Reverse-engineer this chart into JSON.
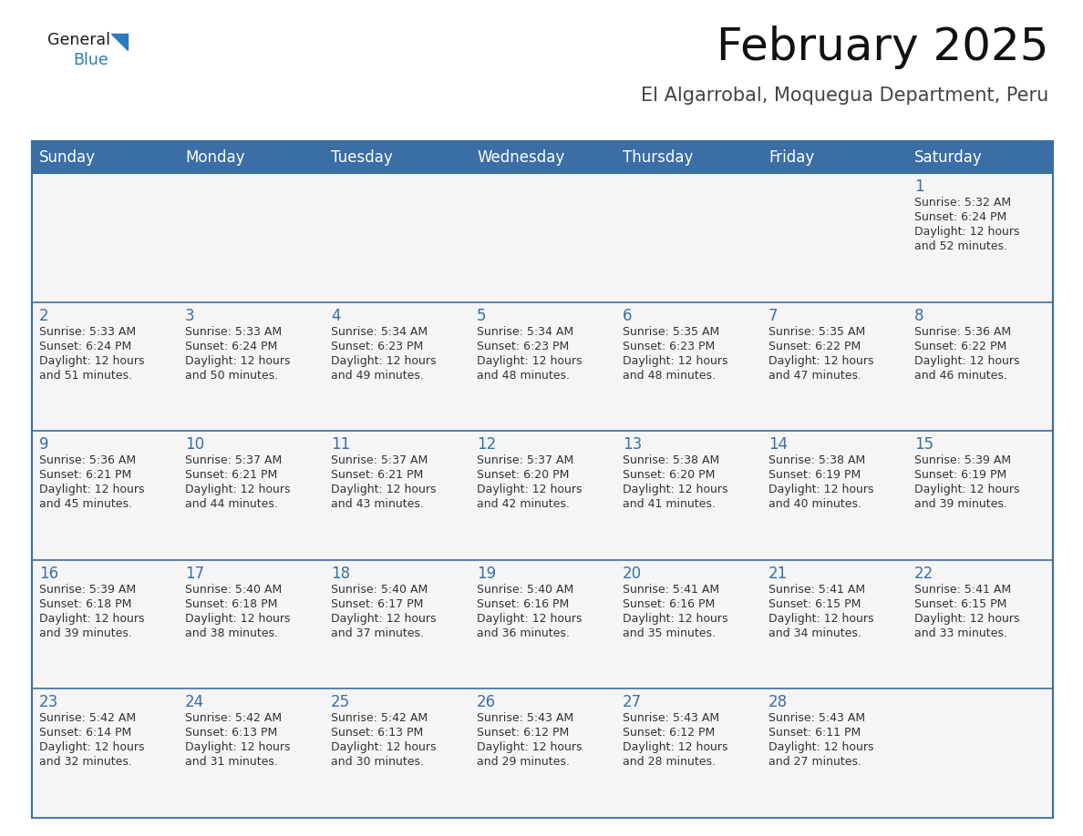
{
  "title": "February 2025",
  "subtitle": "El Algarrobal, Moquegua Department, Peru",
  "header_color": "#3a6ea5",
  "header_text_color": "#ffffff",
  "cell_bg_color": "#ffffff",
  "day_number_color": "#3a6ea5",
  "text_color": "#333333",
  "border_color": "#3a6ea5",
  "days_of_week": [
    "Sunday",
    "Monday",
    "Tuesday",
    "Wednesday",
    "Thursday",
    "Friday",
    "Saturday"
  ],
  "weeks": [
    [
      {
        "day": "",
        "sunrise": "",
        "sunset": "",
        "daylight": ""
      },
      {
        "day": "",
        "sunrise": "",
        "sunset": "",
        "daylight": ""
      },
      {
        "day": "",
        "sunrise": "",
        "sunset": "",
        "daylight": ""
      },
      {
        "day": "",
        "sunrise": "",
        "sunset": "",
        "daylight": ""
      },
      {
        "day": "",
        "sunrise": "",
        "sunset": "",
        "daylight": ""
      },
      {
        "day": "",
        "sunrise": "",
        "sunset": "",
        "daylight": ""
      },
      {
        "day": "1",
        "sunrise": "5:32 AM",
        "sunset": "6:24 PM",
        "daylight": "and 52 minutes."
      }
    ],
    [
      {
        "day": "2",
        "sunrise": "5:33 AM",
        "sunset": "6:24 PM",
        "daylight": "and 51 minutes."
      },
      {
        "day": "3",
        "sunrise": "5:33 AM",
        "sunset": "6:24 PM",
        "daylight": "and 50 minutes."
      },
      {
        "day": "4",
        "sunrise": "5:34 AM",
        "sunset": "6:23 PM",
        "daylight": "and 49 minutes."
      },
      {
        "day": "5",
        "sunrise": "5:34 AM",
        "sunset": "6:23 PM",
        "daylight": "and 48 minutes."
      },
      {
        "day": "6",
        "sunrise": "5:35 AM",
        "sunset": "6:23 PM",
        "daylight": "and 48 minutes."
      },
      {
        "day": "7",
        "sunrise": "5:35 AM",
        "sunset": "6:22 PM",
        "daylight": "and 47 minutes."
      },
      {
        "day": "8",
        "sunrise": "5:36 AM",
        "sunset": "6:22 PM",
        "daylight": "and 46 minutes."
      }
    ],
    [
      {
        "day": "9",
        "sunrise": "5:36 AM",
        "sunset": "6:21 PM",
        "daylight": "and 45 minutes."
      },
      {
        "day": "10",
        "sunrise": "5:37 AM",
        "sunset": "6:21 PM",
        "daylight": "and 44 minutes."
      },
      {
        "day": "11",
        "sunrise": "5:37 AM",
        "sunset": "6:21 PM",
        "daylight": "and 43 minutes."
      },
      {
        "day": "12",
        "sunrise": "5:37 AM",
        "sunset": "6:20 PM",
        "daylight": "and 42 minutes."
      },
      {
        "day": "13",
        "sunrise": "5:38 AM",
        "sunset": "6:20 PM",
        "daylight": "and 41 minutes."
      },
      {
        "day": "14",
        "sunrise": "5:38 AM",
        "sunset": "6:19 PM",
        "daylight": "and 40 minutes."
      },
      {
        "day": "15",
        "sunrise": "5:39 AM",
        "sunset": "6:19 PM",
        "daylight": "and 39 minutes."
      }
    ],
    [
      {
        "day": "16",
        "sunrise": "5:39 AM",
        "sunset": "6:18 PM",
        "daylight": "and 39 minutes."
      },
      {
        "day": "17",
        "sunrise": "5:40 AM",
        "sunset": "6:18 PM",
        "daylight": "and 38 minutes."
      },
      {
        "day": "18",
        "sunrise": "5:40 AM",
        "sunset": "6:17 PM",
        "daylight": "and 37 minutes."
      },
      {
        "day": "19",
        "sunrise": "5:40 AM",
        "sunset": "6:16 PM",
        "daylight": "and 36 minutes."
      },
      {
        "day": "20",
        "sunrise": "5:41 AM",
        "sunset": "6:16 PM",
        "daylight": "and 35 minutes."
      },
      {
        "day": "21",
        "sunrise": "5:41 AM",
        "sunset": "6:15 PM",
        "daylight": "and 34 minutes."
      },
      {
        "day": "22",
        "sunrise": "5:41 AM",
        "sunset": "6:15 PM",
        "daylight": "and 33 minutes."
      }
    ],
    [
      {
        "day": "23",
        "sunrise": "5:42 AM",
        "sunset": "6:14 PM",
        "daylight": "and 32 minutes."
      },
      {
        "day": "24",
        "sunrise": "5:42 AM",
        "sunset": "6:13 PM",
        "daylight": "and 31 minutes."
      },
      {
        "day": "25",
        "sunrise": "5:42 AM",
        "sunset": "6:13 PM",
        "daylight": "and 30 minutes."
      },
      {
        "day": "26",
        "sunrise": "5:43 AM",
        "sunset": "6:12 PM",
        "daylight": "and 29 minutes."
      },
      {
        "day": "27",
        "sunrise": "5:43 AM",
        "sunset": "6:12 PM",
        "daylight": "and 28 minutes."
      },
      {
        "day": "28",
        "sunrise": "5:43 AM",
        "sunset": "6:11 PM",
        "daylight": "and 27 minutes."
      },
      {
        "day": "",
        "sunrise": "",
        "sunset": "",
        "daylight": ""
      }
    ]
  ],
  "logo_color_general": "#1a1a1a",
  "logo_color_blue": "#2a7abf",
  "title_fontsize": 36,
  "subtitle_fontsize": 15,
  "header_fontsize": 12,
  "day_num_fontsize": 12,
  "cell_text_fontsize": 9
}
